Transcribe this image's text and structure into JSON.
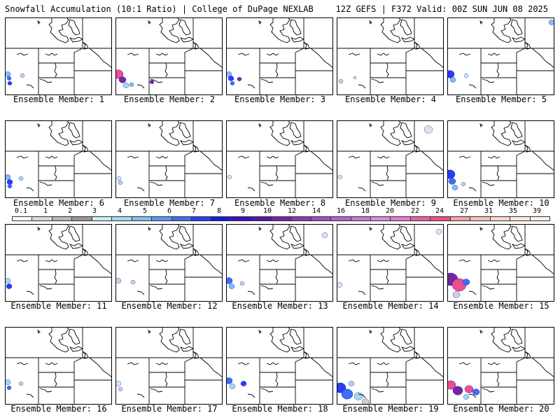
{
  "header": {
    "left": "Snowfall Accumulation (10:1 Ratio) | College of DuPage NEXLAB",
    "right": "12Z GEFS | F372 Valid: 00Z SUN JUN 08 2025"
  },
  "colorbar": {
    "labels": [
      "0.1",
      "1",
      "2",
      "3",
      "4",
      "5",
      "6",
      "7",
      "8",
      "9",
      "10",
      "12",
      "14",
      "16",
      "18",
      "20",
      "22",
      "24",
      "27",
      "31",
      "35",
      "39"
    ],
    "colors": [
      "#ffffff",
      "#d9d9d9",
      "#b8b8b8",
      "#969696",
      "#c4f0f4",
      "#9fdcec",
      "#7cc0ee",
      "#5a98f4",
      "#3f6ef0",
      "#2a3df0",
      "#1a18e0",
      "#3b0fbf",
      "#5a14a8",
      "#7525a0",
      "#8a3bb0",
      "#a14fc0",
      "#b463cc",
      "#c978d6",
      "#d98cdb",
      "#e57ad2",
      "#e85fa8",
      "#ec4f8b",
      "#f0a4a4",
      "#f5c2b8",
      "#f8d8cb",
      "#fbe8dc",
      "#fdf1e6"
    ]
  },
  "members": [
    {
      "label": "Ensemble Member: 1"
    },
    {
      "label": "Ensemble Member: 2"
    },
    {
      "label": "Ensemble Member: 3"
    },
    {
      "label": "Ensemble Member: 4"
    },
    {
      "label": "Ensemble Member: 5"
    },
    {
      "label": "Ensemble Member: 6"
    },
    {
      "label": "Ensemble Member: 7"
    },
    {
      "label": "Ensemble Member: 8"
    },
    {
      "label": "Ensemble Member: 9"
    },
    {
      "label": "Ensemble Member: 10"
    },
    {
      "label": "Ensemble Member: 11"
    },
    {
      "label": "Ensemble Member: 12"
    },
    {
      "label": "Ensemble Member: 13"
    },
    {
      "label": "Ensemble Member: 14"
    },
    {
      "label": "Ensemble Member: 15"
    },
    {
      "label": "Ensemble Member: 16"
    },
    {
      "label": "Ensemble Member: 17"
    },
    {
      "label": "Ensemble Member: 18"
    },
    {
      "label": "Ensemble Member: 19"
    },
    {
      "label": "Ensemble Member: 20"
    }
  ]
}
